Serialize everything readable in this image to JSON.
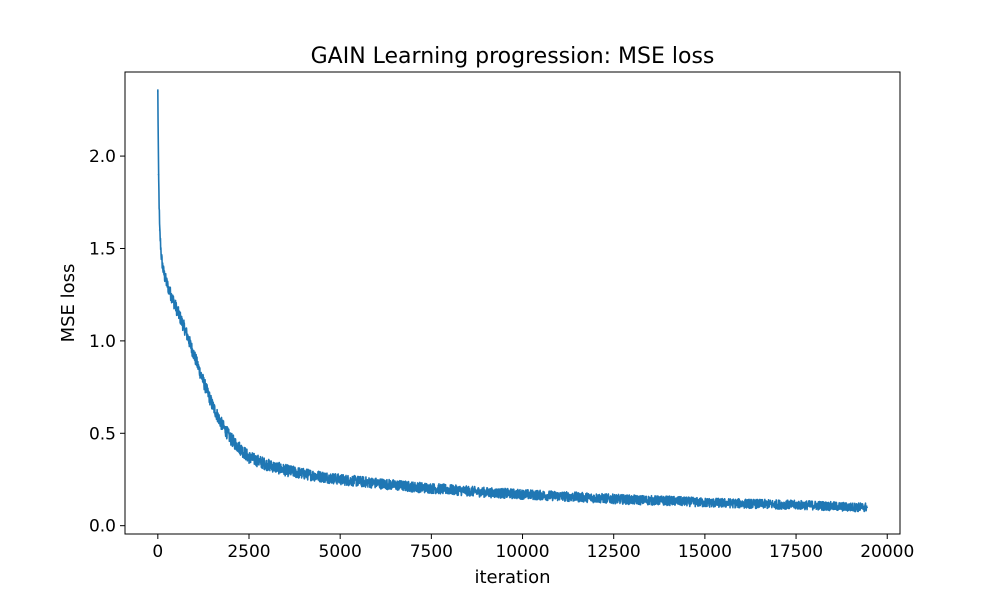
{
  "chart_data": {
    "type": "line",
    "title": "GAIN Learning progression: MSE loss",
    "xlabel": "iteration",
    "ylabel": "MSE loss",
    "xlim": [
      -900,
      20350
    ],
    "ylim": [
      -0.045,
      2.455
    ],
    "x_ticks": [
      0,
      2500,
      5000,
      7500,
      10000,
      12500,
      15000,
      17500,
      20000
    ],
    "x_tick_labels": [
      "0",
      "2500",
      "5000",
      "7500",
      "10000",
      "12500",
      "15000",
      "17500",
      "20000"
    ],
    "y_ticks": [
      0.0,
      0.5,
      1.0,
      1.5,
      2.0
    ],
    "y_tick_labels": [
      "0.0",
      "0.5",
      "1.0",
      "1.5",
      "2.0"
    ],
    "grid": false,
    "series": [
      {
        "color": "#1f77b4",
        "noise_band": 0.035,
        "x": [
          0,
          20,
          50,
          100,
          150,
          200,
          300,
          500,
          750,
          1000,
          1250,
          1500,
          1750,
          2000,
          2250,
          2500,
          3000,
          3500,
          4000,
          5000,
          6000,
          7000,
          8000,
          9000,
          10000,
          11000,
          12000,
          13000,
          14000,
          15000,
          16000,
          17000,
          18000,
          19000,
          19450
        ],
        "y": [
          2.35,
          1.9,
          1.6,
          1.45,
          1.38,
          1.34,
          1.28,
          1.18,
          1.06,
          0.92,
          0.78,
          0.65,
          0.55,
          0.47,
          0.42,
          0.37,
          0.33,
          0.3,
          0.28,
          0.25,
          0.23,
          0.21,
          0.195,
          0.18,
          0.17,
          0.16,
          0.15,
          0.14,
          0.135,
          0.125,
          0.12,
          0.115,
          0.11,
          0.1,
          0.1
        ]
      }
    ]
  }
}
